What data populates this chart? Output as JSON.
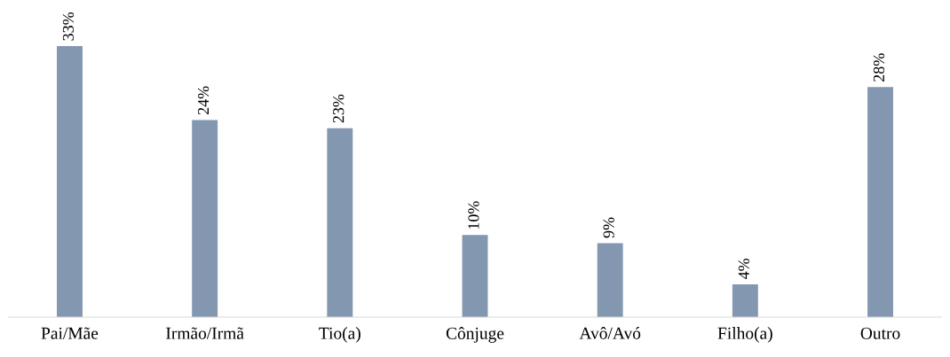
{
  "chart_data": {
    "type": "bar",
    "categories": [
      "Pai/Mãe",
      "Irmão/Irmã",
      "Tio(a)",
      "Cônjuge",
      "Avô/Avó",
      "Filho(a)",
      "Outro"
    ],
    "values": [
      33,
      24,
      23,
      10,
      9,
      4,
      28
    ],
    "value_labels": [
      "33%",
      "24%",
      "23%",
      "10%",
      "9%",
      "4%",
      "28%"
    ],
    "color": "#8497b0",
    "grid": false,
    "legend": false
  }
}
